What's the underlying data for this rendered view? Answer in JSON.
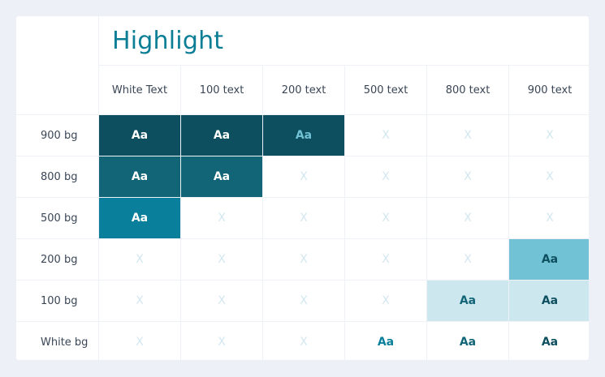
{
  "title": "Highlight",
  "columns": [
    "White Text",
    "100 text",
    "200 text",
    "500 text",
    "800 text",
    "900 text"
  ],
  "rows": [
    {
      "label": "900 bg",
      "cells": [
        {
          "text": "Aa",
          "bg": "#0d4f5f",
          "fg": "#ffffff"
        },
        {
          "text": "Aa",
          "bg": "#0d4f5f",
          "fg": "#ffffff"
        },
        {
          "text": "Aa",
          "bg": "#0d4f5f",
          "fg": "#72c2d6"
        },
        {
          "text": "X"
        },
        {
          "text": "X"
        },
        {
          "text": "X"
        }
      ]
    },
    {
      "label": "800 bg",
      "cells": [
        {
          "text": "Aa",
          "bg": "#116577",
          "fg": "#ffffff"
        },
        {
          "text": "Aa",
          "bg": "#116577",
          "fg": "#ffffff"
        },
        {
          "text": "X"
        },
        {
          "text": "X"
        },
        {
          "text": "X"
        },
        {
          "text": "X"
        }
      ]
    },
    {
      "label": "500 bg",
      "cells": [
        {
          "text": "Aa",
          "bg": "#0a7f9b",
          "fg": "#ffffff"
        },
        {
          "text": "X"
        },
        {
          "text": "X"
        },
        {
          "text": "X"
        },
        {
          "text": "X"
        },
        {
          "text": "X"
        }
      ]
    },
    {
      "label": "200 bg",
      "cells": [
        {
          "text": "X"
        },
        {
          "text": "X"
        },
        {
          "text": "X"
        },
        {
          "text": "X"
        },
        {
          "text": "X"
        },
        {
          "text": "Aa",
          "bg": "#72c2d6",
          "fg": "#0d4f5f"
        }
      ]
    },
    {
      "label": "100 bg",
      "cells": [
        {
          "text": "X"
        },
        {
          "text": "X"
        },
        {
          "text": "X"
        },
        {
          "text": "X"
        },
        {
          "text": "Aa",
          "bg": "#cde7ef",
          "fg": "#116577"
        },
        {
          "text": "Aa",
          "bg": "#cde7ef",
          "fg": "#0d4f5f"
        }
      ]
    },
    {
      "label": "White bg",
      "cells": [
        {
          "text": "X"
        },
        {
          "text": "X"
        },
        {
          "text": "X"
        },
        {
          "text": "Aa",
          "bg": "#ffffff",
          "fg": "#0a7f9b"
        },
        {
          "text": "Aa",
          "bg": "#ffffff",
          "fg": "#116577"
        },
        {
          "text": "Aa",
          "bg": "#ffffff",
          "fg": "#0d4f5f"
        }
      ]
    }
  ]
}
